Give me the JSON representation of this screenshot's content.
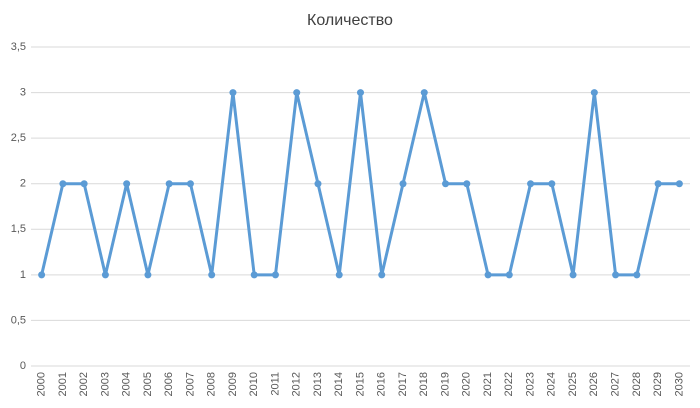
{
  "chart_data": {
    "type": "line",
    "title": "Количество",
    "categories": [
      "2000",
      "2001",
      "2002",
      "2003",
      "2004",
      "2005",
      "2006",
      "2007",
      "2008",
      "2009",
      "2010",
      "2011",
      "2012",
      "2013",
      "2014",
      "2015",
      "2016",
      "2017",
      "2018",
      "2019",
      "2020",
      "2021",
      "2022",
      "2023",
      "2024",
      "2025",
      "2026",
      "2027",
      "2028",
      "2029",
      "2030"
    ],
    "values": [
      1,
      2,
      2,
      1,
      2,
      1,
      2,
      2,
      1,
      3,
      1,
      1,
      3,
      2,
      1,
      3,
      1,
      2,
      3,
      2,
      2,
      1,
      1,
      2,
      2,
      1,
      3,
      1,
      1,
      2,
      2
    ],
    "color": "#5b9bd5",
    "ylim": [
      0,
      3.5
    ],
    "yticks": [
      0,
      {
        "value": 0.5,
        "label": "0,5"
      },
      1,
      {
        "value": 1.5,
        "label": "1,5"
      },
      2,
      {
        "value": 2.5,
        "label": "2,5"
      },
      3,
      {
        "value": 3.5,
        "label": "3,5"
      }
    ],
    "grid": true
  }
}
